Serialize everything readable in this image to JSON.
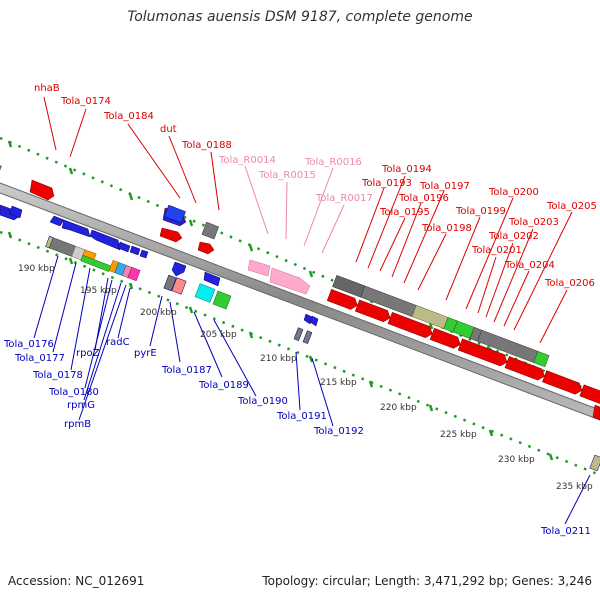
{
  "title": "Tolumonas auensis DSM 9187, complete genome",
  "accession": "Accession: NC_012691",
  "topology": "Topology: circular; Length: 3,471,292 bp; Genes: 3,246",
  "colors": {
    "forward_label": "#dd0000",
    "reverse_label": "#0000bb",
    "rna_label": "#ee88aa",
    "backbone": "#999999",
    "ruler_dots": "#229922",
    "tick_labels": "#333333"
  },
  "scale_labels": [
    "190 kbp",
    "195 kbp",
    "200 kbp",
    "205 kbp",
    "210 kbp",
    "215 kbp",
    "220 kbp",
    "225 kbp",
    "230 kbp",
    "235 kbp"
  ],
  "forward_labels": [
    "nhaB",
    "Tola_0174",
    "Tola_0184",
    "dut",
    "Tola_0188",
    "Tola_0193",
    "Tola_0194",
    "Tola_0195",
    "Tola_0196",
    "Tola_0197",
    "Tola_0198",
    "Tola_0199",
    "Tola_0200",
    "Tola_0201",
    "Tola_0202",
    "Tola_0203",
    "Tola_0204",
    "Tola_0205",
    "Tola_0206"
  ],
  "rna_labels": [
    "Tola_R0014",
    "Tola_R0015",
    "Tola_R0016",
    "Tola_R0017"
  ],
  "reverse_labels": [
    "Tola_0176",
    "Tola_0177",
    "Tola_0178",
    "Tola_0180",
    "rpoZ",
    "rpmG",
    "rpmB",
    "radC",
    "pyrE",
    "Tola_0187",
    "Tola_0189",
    "Tola_0190",
    "Tola_0191",
    "Tola_0192",
    "Tola_0211"
  ]
}
